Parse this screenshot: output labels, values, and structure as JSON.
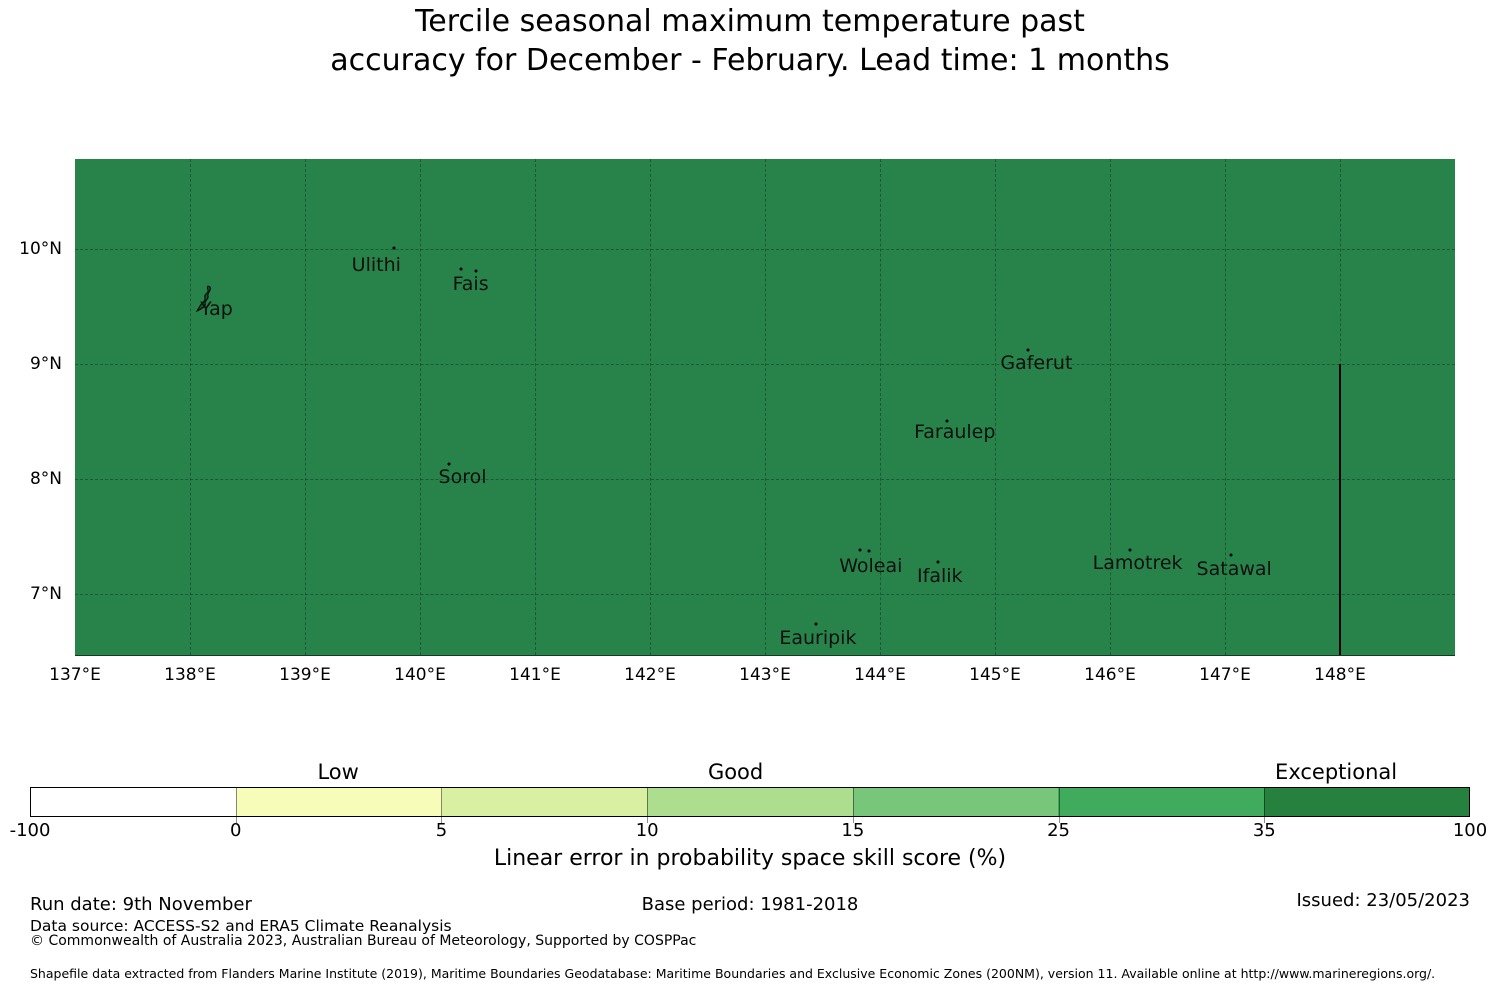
{
  "title": {
    "line1": "Tercile seasonal maximum temperature past",
    "line2": "accuracy for December - February. Lead time: 1 months"
  },
  "map": {
    "fill_color": "#27834a",
    "extent": {
      "lon_min": 137.0,
      "lon_max": 149.0,
      "lat_min": 6.47,
      "lat_max": 10.78
    },
    "grid": {
      "lons": [
        138,
        139,
        140,
        141,
        142,
        143,
        144,
        145,
        146,
        147,
        148
      ],
      "lats": [
        10,
        9,
        8,
        7
      ]
    },
    "y_ticks": [
      {
        "label": "10°N",
        "lat": 10
      },
      {
        "label": "9°N",
        "lat": 9
      },
      {
        "label": "8°N",
        "lat": 8
      },
      {
        "label": "7°N",
        "lat": 7
      }
    ],
    "x_ticks": [
      {
        "label": "137°E",
        "lon": 137
      },
      {
        "label": "138°E",
        "lon": 138
      },
      {
        "label": "139°E",
        "lon": 139
      },
      {
        "label": "140°E",
        "lon": 140
      },
      {
        "label": "141°E",
        "lon": 141
      },
      {
        "label": "142°E",
        "lon": 142
      },
      {
        "label": "143°E",
        "lon": 143
      },
      {
        "label": "144°E",
        "lon": 144
      },
      {
        "label": "145°E",
        "lon": 145
      },
      {
        "label": "146°E",
        "lon": 146
      },
      {
        "label": "147°E",
        "lon": 147
      },
      {
        "label": "148°E",
        "lon": 148
      }
    ],
    "boundary_line": {
      "lon": 148.0,
      "lat_top": 9.0
    },
    "islands": [
      {
        "name": "Yap",
        "label": {
          "lon": 138.23,
          "lat": 9.48
        },
        "shape": "yap",
        "shape_lon": 138.14,
        "shape_lat": 9.56,
        "dots": []
      },
      {
        "name": "Ulithi",
        "label": {
          "lon": 139.62,
          "lat": 9.86
        },
        "dots": [
          [
            139.77,
            10.01
          ]
        ]
      },
      {
        "name": "Fais",
        "label": {
          "lon": 140.44,
          "lat": 9.69
        },
        "dots": [
          [
            140.36,
            9.82
          ],
          [
            140.49,
            9.81
          ]
        ]
      },
      {
        "name": "Gaferut",
        "label": {
          "lon": 145.36,
          "lat": 9.01
        },
        "dots": [
          [
            145.29,
            9.12
          ]
        ]
      },
      {
        "name": "Faraulep",
        "label": {
          "lon": 144.65,
          "lat": 8.41
        },
        "dots": [
          [
            144.58,
            8.5
          ]
        ]
      },
      {
        "name": "Sorol",
        "label": {
          "lon": 140.37,
          "lat": 8.02
        },
        "dots": [
          [
            140.25,
            8.13
          ]
        ]
      },
      {
        "name": "Woleai",
        "label": {
          "lon": 143.92,
          "lat": 7.24
        },
        "dots": [
          [
            143.83,
            7.38
          ],
          [
            143.9,
            7.37
          ]
        ]
      },
      {
        "name": "Ifalik",
        "label": {
          "lon": 144.52,
          "lat": 7.16
        },
        "dots": [
          [
            144.5,
            7.28
          ]
        ]
      },
      {
        "name": "Lamotrek",
        "label": {
          "lon": 146.24,
          "lat": 7.27
        },
        "dots": [
          [
            146.17,
            7.38
          ]
        ]
      },
      {
        "name": "Satawal",
        "label": {
          "lon": 147.08,
          "lat": 7.22
        },
        "dots": [
          [
            147.05,
            7.34
          ]
        ]
      },
      {
        "name": "Eauripik",
        "label": {
          "lon": 143.46,
          "lat": 6.62
        },
        "dots": [
          [
            143.44,
            6.74
          ]
        ]
      }
    ]
  },
  "colorbar": {
    "tick_labels": [
      "-100",
      "0",
      "5",
      "10",
      "15",
      "25",
      "35",
      "100"
    ],
    "segments": [
      {
        "from": -100,
        "to": 0,
        "color": "#ffffff"
      },
      {
        "from": 0,
        "to": 5,
        "color": "#f7fcb9"
      },
      {
        "from": 5,
        "to": 10,
        "color": "#d9f0a3"
      },
      {
        "from": 10,
        "to": 15,
        "color": "#addd8e"
      },
      {
        "from": 15,
        "to": 25,
        "color": "#78c679"
      },
      {
        "from": 25,
        "to": 35,
        "color": "#41ab5d"
      },
      {
        "from": 35,
        "to": 100,
        "color": "#26813f"
      }
    ],
    "zone_labels": [
      {
        "text": "Low",
        "center_value_pct": 21.4
      },
      {
        "text": "Good",
        "center_value_pct": 49.0
      },
      {
        "text": "Exceptional",
        "center_value_pct": 90.7
      }
    ],
    "axis_label": "Linear error in probability space skill score (%)"
  },
  "footer": {
    "run_date": "Run date: 9th November",
    "base_period": "Base period: 1981-2018",
    "issued": "Issued: 23/05/2023",
    "data_source": "Data source: ACCESS-S2 and ERA5 Climate Reanalysis",
    "copyright": "© Commonwealth of Australia 2023, Australian Bureau of Meteorology, Supported by COSPPac",
    "shapefile_note": "Shapefile data extracted from Flanders Marine Institute (2019), Maritime Boundaries Geodatabase: Maritime Boundaries and Exclusive Economic Zones (200NM), version 11. Available online at http://www.marineregions.org/."
  }
}
